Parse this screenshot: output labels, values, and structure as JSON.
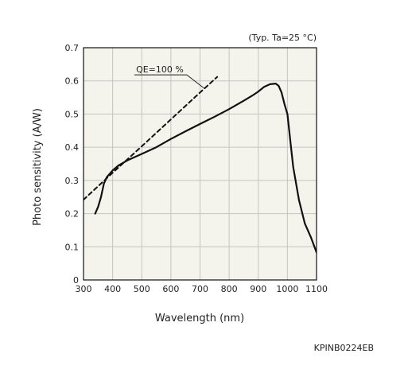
{
  "chart_data": {
    "type": "line",
    "title": "",
    "condition_note": "(Typ. Ta=25 °C)",
    "figure_code": "KPINB0224EB",
    "xlabel": "Wavelength (nm)",
    "ylabel": "Photo sensitivity (A/W)",
    "xlim": [
      300,
      1100
    ],
    "ylim": [
      0,
      0.7
    ],
    "x_ticks": [
      300,
      400,
      500,
      600,
      700,
      800,
      900,
      1000,
      1100
    ],
    "y_ticks": [
      0,
      0.1,
      0.2,
      0.3,
      0.4,
      0.5,
      0.6,
      0.7
    ],
    "x_tick_labels": [
      "300",
      "400",
      "500",
      "600",
      "700",
      "800",
      "900",
      "1000",
      "1100"
    ],
    "y_tick_labels": [
      "0",
      "0.1",
      "0.2",
      "0.3",
      "0.4",
      "0.5",
      "0.6",
      "0.7"
    ],
    "grid": true,
    "plot_background": "#f4f4ec",
    "grid_color": "#c4c4c4",
    "line_color": "#111111",
    "series": [
      {
        "style": "solid",
        "x": [
          340,
          350,
          360,
          370,
          380,
          400,
          420,
          450,
          500,
          550,
          600,
          650,
          700,
          750,
          800,
          850,
          880,
          900,
          920,
          940,
          960,
          970,
          980,
          990,
          1000,
          1010,
          1020,
          1040,
          1060,
          1080,
          1100
        ],
        "y": [
          0.2,
          0.22,
          0.25,
          0.29,
          0.31,
          0.33,
          0.345,
          0.36,
          0.38,
          0.4,
          0.425,
          0.448,
          0.47,
          0.492,
          0.515,
          0.54,
          0.556,
          0.568,
          0.582,
          0.59,
          0.592,
          0.585,
          0.565,
          0.53,
          0.5,
          0.42,
          0.34,
          0.24,
          0.17,
          0.13,
          0.083
        ]
      },
      {
        "name": "QE=100 %",
        "style": "dashed",
        "x": [
          300,
          400,
          500,
          600,
          700,
          759
        ],
        "y": [
          0.242,
          0.323,
          0.403,
          0.484,
          0.565,
          0.612
        ]
      }
    ],
    "annotations": [
      {
        "text": "QE=100 %",
        "x": 660,
        "y": 0.635
      }
    ]
  }
}
